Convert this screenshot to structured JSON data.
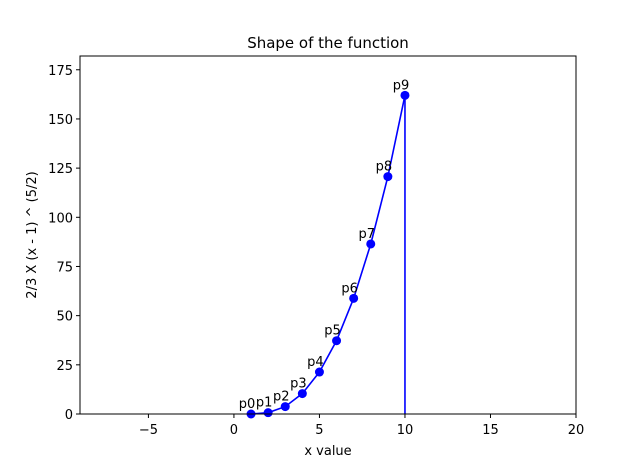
{
  "chart_data": {
    "type": "line",
    "title": "Shape of the function",
    "xlabel": "x value",
    "ylabel": "2/3 X (x - 1) ^ (5/2)",
    "xlim": [
      -9,
      20
    ],
    "ylim": [
      0,
      182
    ],
    "x_ticks": [
      -5,
      0,
      5,
      10,
      15,
      20
    ],
    "y_ticks": [
      0,
      25,
      50,
      75,
      100,
      125,
      150,
      175
    ],
    "grid": false,
    "series": [
      {
        "color": "#0000ff",
        "marker": "circle",
        "x": [
          1,
          2,
          3,
          4,
          5,
          6,
          7,
          8,
          9,
          10
        ],
        "y": [
          0,
          0.67,
          3.77,
          10.39,
          21.33,
          37.27,
          58.79,
          86.43,
          120.68,
          162.0
        ],
        "point_labels": [
          "p0",
          "p1",
          "p2",
          "p3",
          "p4",
          "p5",
          "p6",
          "p7",
          "p8",
          "p9"
        ]
      }
    ],
    "vertical_line": {
      "x": 10,
      "y_from": 0,
      "y_to": 162.0,
      "color": "#0000ff"
    }
  }
}
